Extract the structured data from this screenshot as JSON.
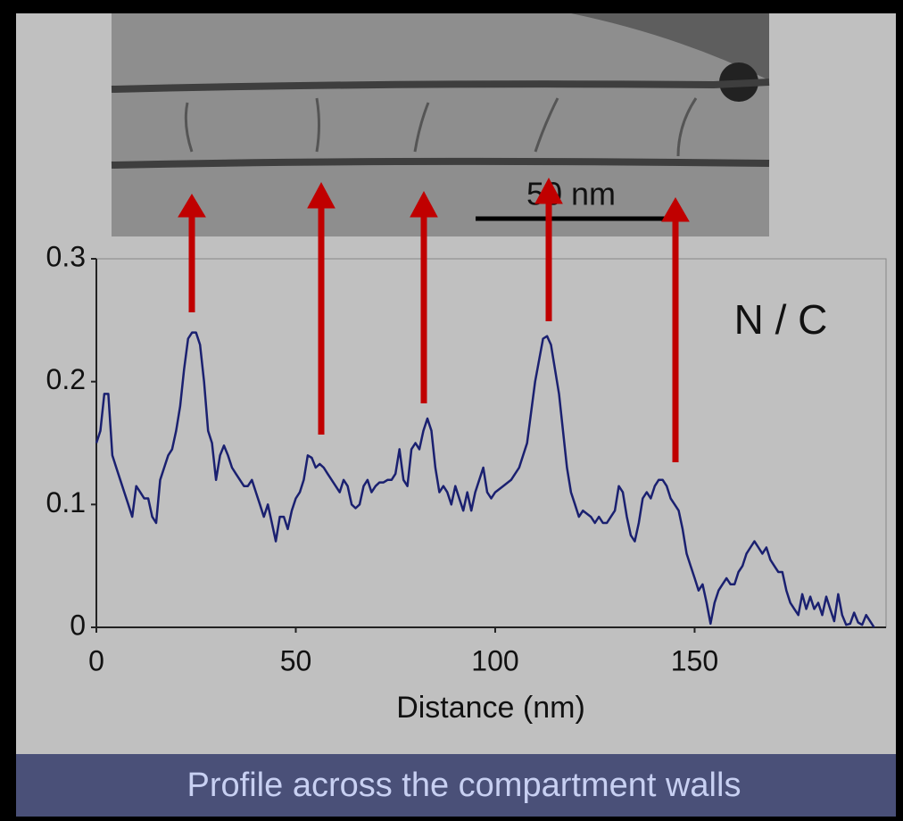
{
  "chart_data": {
    "type": "line",
    "x": [
      0,
      1,
      2,
      3,
      4,
      5,
      6,
      7,
      8,
      9,
      10,
      11,
      12,
      13,
      14,
      15,
      16,
      17,
      18,
      19,
      20,
      21,
      22,
      23,
      24,
      25,
      26,
      27,
      28,
      29,
      30,
      31,
      32,
      33,
      34,
      35,
      36,
      37,
      38,
      39,
      40,
      41,
      42,
      43,
      44,
      45,
      46,
      47,
      48,
      49,
      50,
      51,
      52,
      53,
      54,
      55,
      56,
      57,
      58,
      59,
      60,
      61,
      62,
      63,
      64,
      65,
      66,
      67,
      68,
      69,
      70,
      71,
      72,
      73,
      74,
      75,
      76,
      77,
      78,
      79,
      80,
      81,
      82,
      83,
      84,
      85,
      86,
      87,
      88,
      89,
      90,
      91,
      92,
      93,
      94,
      95,
      96,
      97,
      98,
      99,
      100,
      102,
      104,
      106,
      108,
      110,
      112,
      113,
      114,
      116,
      118,
      119,
      120,
      121,
      122,
      124,
      125,
      126,
      127,
      128,
      129,
      130,
      131,
      132,
      133,
      134,
      135,
      136,
      137,
      138,
      139,
      140,
      141,
      142,
      143,
      144,
      145,
      146,
      147,
      148,
      149,
      150,
      151,
      152,
      153,
      154,
      155,
      156,
      157,
      158,
      159,
      160,
      161,
      162,
      163,
      164,
      165,
      166,
      167,
      168,
      169,
      170,
      171,
      172,
      173,
      174,
      175,
      176,
      177,
      178,
      179,
      180,
      181,
      182,
      183,
      184,
      185,
      186,
      187,
      188,
      189,
      190,
      191,
      192,
      193,
      194,
      195
    ],
    "values": [
      0.15,
      0.16,
      0.19,
      0.19,
      0.14,
      0.13,
      0.12,
      0.11,
      0.1,
      0.09,
      0.115,
      0.11,
      0.105,
      0.105,
      0.09,
      0.085,
      0.12,
      0.13,
      0.14,
      0.145,
      0.16,
      0.18,
      0.21,
      0.235,
      0.24,
      0.24,
      0.23,
      0.2,
      0.16,
      0.15,
      0.12,
      0.14,
      0.148,
      0.14,
      0.13,
      0.125,
      0.12,
      0.115,
      0.115,
      0.12,
      0.11,
      0.1,
      0.09,
      0.1,
      0.085,
      0.07,
      0.09,
      0.09,
      0.08,
      0.095,
      0.105,
      0.11,
      0.12,
      0.14,
      0.138,
      0.13,
      0.133,
      0.13,
      0.125,
      0.12,
      0.115,
      0.11,
      0.12,
      0.115,
      0.1,
      0.097,
      0.1,
      0.115,
      0.12,
      0.11,
      0.115,
      0.118,
      0.118,
      0.12,
      0.12,
      0.125,
      0.145,
      0.12,
      0.115,
      0.145,
      0.15,
      0.145,
      0.16,
      0.17,
      0.16,
      0.13,
      0.11,
      0.115,
      0.11,
      0.1,
      0.115,
      0.105,
      0.095,
      0.11,
      0.095,
      0.11,
      0.12,
      0.13,
      0.11,
      0.105,
      0.11,
      0.115,
      0.12,
      0.13,
      0.15,
      0.2,
      0.235,
      0.237,
      0.23,
      0.19,
      0.13,
      0.11,
      0.1,
      0.09,
      0.095,
      0.09,
      0.085,
      0.09,
      0.085,
      0.085,
      0.09,
      0.095,
      0.115,
      0.11,
      0.09,
      0.075,
      0.07,
      0.085,
      0.105,
      0.11,
      0.105,
      0.115,
      0.12,
      0.12,
      0.115,
      0.105,
      0.1,
      0.095,
      0.08,
      0.06,
      0.05,
      0.04,
      0.03,
      0.035,
      0.02,
      0.003,
      0.02,
      0.03,
      0.035,
      0.04,
      0.035,
      0.035,
      0.045,
      0.05,
      0.06,
      0.065,
      0.07,
      0.065,
      0.06,
      0.065,
      0.055,
      0.05,
      0.045,
      0.045,
      0.03,
      0.02,
      0.015,
      0.01,
      0.027,
      0.015,
      0.025,
      0.015,
      0.02,
      0.01,
      0.025,
      0.015,
      0.005,
      0.027,
      0.01,
      0.002,
      0.003,
      0.012,
      0.004,
      0.002,
      0.01,
      0.005,
      0.0
    ],
    "color": "#1a2070",
    "xlabel": "Distance (nm)",
    "xlim": [
      0,
      198
    ],
    "xticks": [
      0,
      50,
      100,
      150
    ],
    "ylim": [
      0,
      0.3
    ],
    "yticks": [
      0,
      0.1,
      0.2,
      0.3
    ],
    "grid": false,
    "annotations": [
      "N / C",
      "50 nm"
    ]
  },
  "caption": "Profile across the compartment walls"
}
